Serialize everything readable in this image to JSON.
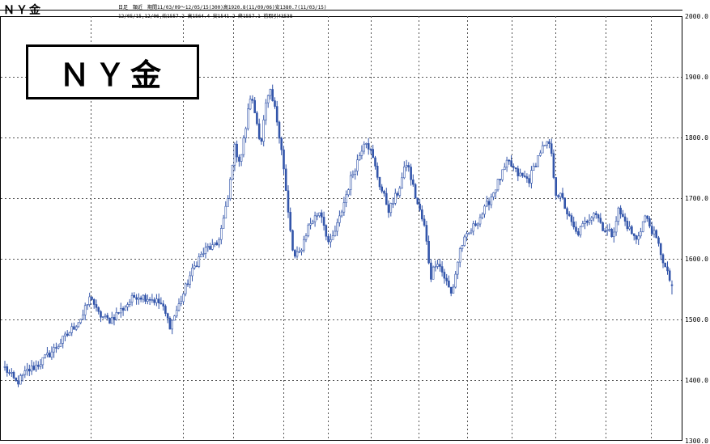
{
  "header": {
    "title": "ＮＹ金",
    "info_line1": "日足　類近　期間11/03/09～12/05/15(300)高1920.8(11/09/06)安1380.7(11/03/15)",
    "info_line2": "12/05/15,12/06,始1557.2 高1564.4 安1541.2 終1557.1 前取引43538"
  },
  "title_box": {
    "label": "ＮＹ金"
  },
  "chart_data": {
    "type": "candlestick",
    "title": "ＮＹ金",
    "period": "11/03/09～12/05/15",
    "bars": 300,
    "high": {
      "value": 1920.8,
      "date": "11/09/06"
    },
    "low": {
      "value": 1380.7,
      "date": "11/03/15"
    },
    "last": {
      "date": "12/05/15",
      "open": 1557.2,
      "high": 1564.4,
      "low": 1541.2,
      "close": 1557.1
    },
    "ylim": [
      1300,
      2000
    ],
    "yticks": [
      "2000.0",
      "1900.0",
      "1800.0",
      "1700.0",
      "1600.0",
      "1500.0",
      "1400.0",
      "1300.0"
    ],
    "grid": true,
    "series_color": "#3355aa",
    "close_keypoints": [
      [
        0,
        1420
      ],
      [
        8,
        1395
      ],
      [
        15,
        1415
      ],
      [
        22,
        1425
      ],
      [
        32,
        1448
      ],
      [
        42,
        1475
      ],
      [
        52,
        1505
      ],
      [
        58,
        1540
      ],
      [
        62,
        1510
      ],
      [
        70,
        1498
      ],
      [
        80,
        1520
      ],
      [
        88,
        1540
      ],
      [
        98,
        1535
      ],
      [
        105,
        1525
      ],
      [
        111,
        1490
      ],
      [
        118,
        1530
      ],
      [
        124,
        1570
      ],
      [
        130,
        1600
      ],
      [
        136,
        1618
      ],
      [
        142,
        1620
      ],
      [
        146,
        1655
      ],
      [
        150,
        1700
      ],
      [
        154,
        1785
      ],
      [
        158,
        1760
      ],
      [
        162,
        1820
      ],
      [
        165,
        1870
      ],
      [
        168,
        1840
      ],
      [
        172,
        1790
      ],
      [
        175,
        1850
      ],
      [
        178,
        1875
      ],
      [
        182,
        1840
      ],
      [
        186,
        1780
      ],
      [
        190,
        1680
      ],
      [
        194,
        1600
      ],
      [
        198,
        1610
      ],
      [
        204,
        1655
      ],
      [
        212,
        1680
      ],
      [
        218,
        1620
      ],
      [
        224,
        1660
      ],
      [
        232,
        1730
      ],
      [
        238,
        1770
      ],
      [
        242,
        1800
      ],
      [
        246,
        1775
      ],
      [
        252,
        1720
      ],
      [
        258,
        1680
      ],
      [
        264,
        1710
      ],
      [
        270,
        1760
      ],
      [
        276,
        1700
      ],
      [
        282,
        1650
      ],
      [
        286,
        1570
      ],
      [
        290,
        1600
      ],
      [
        296,
        1565
      ],
      [
        300,
        1540
      ],
      [
        306,
        1620
      ],
      [
        314,
        1650
      ],
      [
        322,
        1680
      ],
      [
        330,
        1720
      ],
      [
        338,
        1760
      ],
      [
        344,
        1740
      ],
      [
        352,
        1730
      ],
      [
        360,
        1780
      ],
      [
        366,
        1790
      ],
      [
        370,
        1710
      ],
      [
        374,
        1700
      ],
      [
        380,
        1660
      ],
      [
        384,
        1640
      ],
      [
        390,
        1660
      ],
      [
        396,
        1680
      ],
      [
        402,
        1650
      ],
      [
        408,
        1640
      ],
      [
        412,
        1680
      ],
      [
        418,
        1655
      ],
      [
        424,
        1630
      ],
      [
        430,
        1670
      ],
      [
        436,
        1640
      ],
      [
        440,
        1615
      ],
      [
        444,
        1580
      ],
      [
        448,
        1557
      ]
    ]
  }
}
